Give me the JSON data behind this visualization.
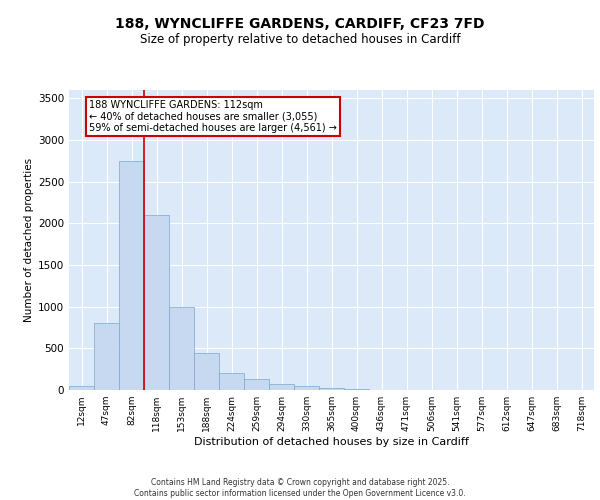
{
  "title_line1": "188, WYNCLIFFE GARDENS, CARDIFF, CF23 7FD",
  "title_line2": "Size of property relative to detached houses in Cardiff",
  "xlabel": "Distribution of detached houses by size in Cardiff",
  "ylabel": "Number of detached properties",
  "bar_labels": [
    "12sqm",
    "47sqm",
    "82sqm",
    "118sqm",
    "153sqm",
    "188sqm",
    "224sqm",
    "259sqm",
    "294sqm",
    "330sqm",
    "365sqm",
    "400sqm",
    "436sqm",
    "471sqm",
    "506sqm",
    "541sqm",
    "577sqm",
    "612sqm",
    "647sqm",
    "683sqm",
    "718sqm"
  ],
  "bar_values": [
    50,
    800,
    2750,
    2100,
    1000,
    450,
    200,
    130,
    75,
    50,
    30,
    10,
    5,
    2,
    0,
    0,
    0,
    0,
    0,
    0,
    0
  ],
  "bar_color": "#c6d9f1",
  "bar_edge_color": "#7ba7cc",
  "vline_x_index": 3,
  "vline_color": "#cc0000",
  "annotation_text": "188 WYNCLIFFE GARDENS: 112sqm\n← 40% of detached houses are smaller (3,055)\n59% of semi-detached houses are larger (4,561) →",
  "annotation_box_color": "#cc0000",
  "ylim": [
    0,
    3600
  ],
  "yticks": [
    0,
    500,
    1000,
    1500,
    2000,
    2500,
    3000,
    3500
  ],
  "background_color": "#dce9f8",
  "grid_color": "#ffffff",
  "footer_line1": "Contains HM Land Registry data © Crown copyright and database right 2025.",
  "footer_line2": "Contains public sector information licensed under the Open Government Licence v3.0."
}
